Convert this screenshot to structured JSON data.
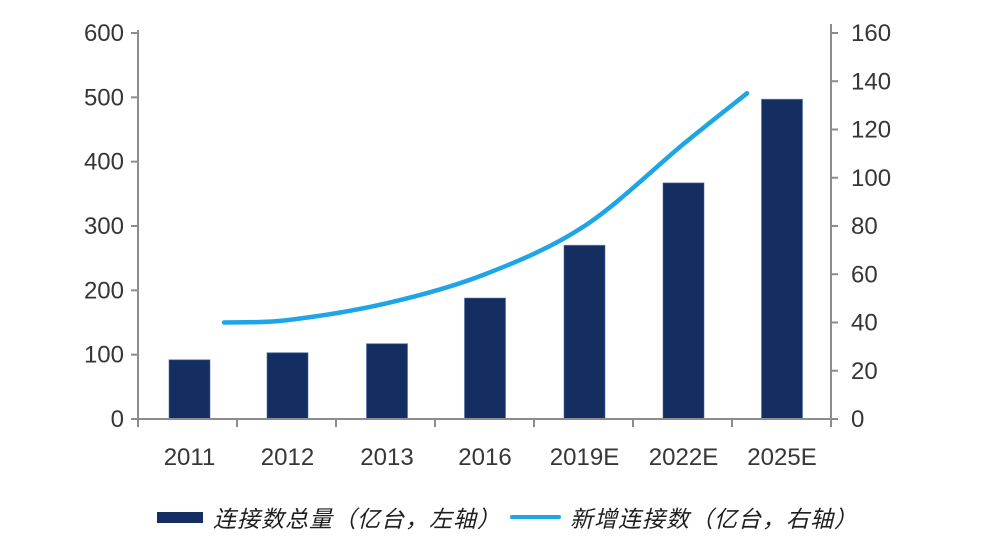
{
  "chart_data": {
    "type": "combo_bar_line",
    "title": "",
    "categories": [
      "2011",
      "2012",
      "2013",
      "2016",
      "2019E",
      "2022E",
      "2025E"
    ],
    "series": [
      {
        "name": "连接数总量（亿台，左轴）",
        "type": "bar",
        "axis": "left",
        "color": "#142E61",
        "edge_color": "#4a6aa5",
        "values": [
          92,
          103,
          117,
          188,
          270,
          367,
          497
        ]
      },
      {
        "name": "新增连接数（亿台，右轴）",
        "type": "line",
        "axis": "right",
        "color": "#1EA5E6",
        "values": [
          40,
          41,
          48,
          60,
          80,
          114,
          135
        ]
      }
    ],
    "left_axis": {
      "min": 0,
      "max": 600,
      "step": 100,
      "tick_labels": [
        "0",
        "100",
        "200",
        "300",
        "400",
        "500",
        "600"
      ]
    },
    "right_axis": {
      "min": 0,
      "max": 160,
      "step": 20,
      "tick_labels": [
        "0",
        "20",
        "40",
        "60",
        "80",
        "100",
        "120",
        "140",
        "160"
      ]
    },
    "grid": false,
    "legend_position": "bottom"
  },
  "legend": {
    "items": [
      {
        "label": "连接数总量（亿台，左轴）",
        "swatch": "bar",
        "color": "#142E61"
      },
      {
        "label": "新增连接数（亿台，右轴）",
        "swatch": "line",
        "color": "#1EA5E6"
      }
    ]
  },
  "colors": {
    "axis": "#8c8c8c",
    "tick_text": "#363636",
    "background": "#ffffff"
  }
}
